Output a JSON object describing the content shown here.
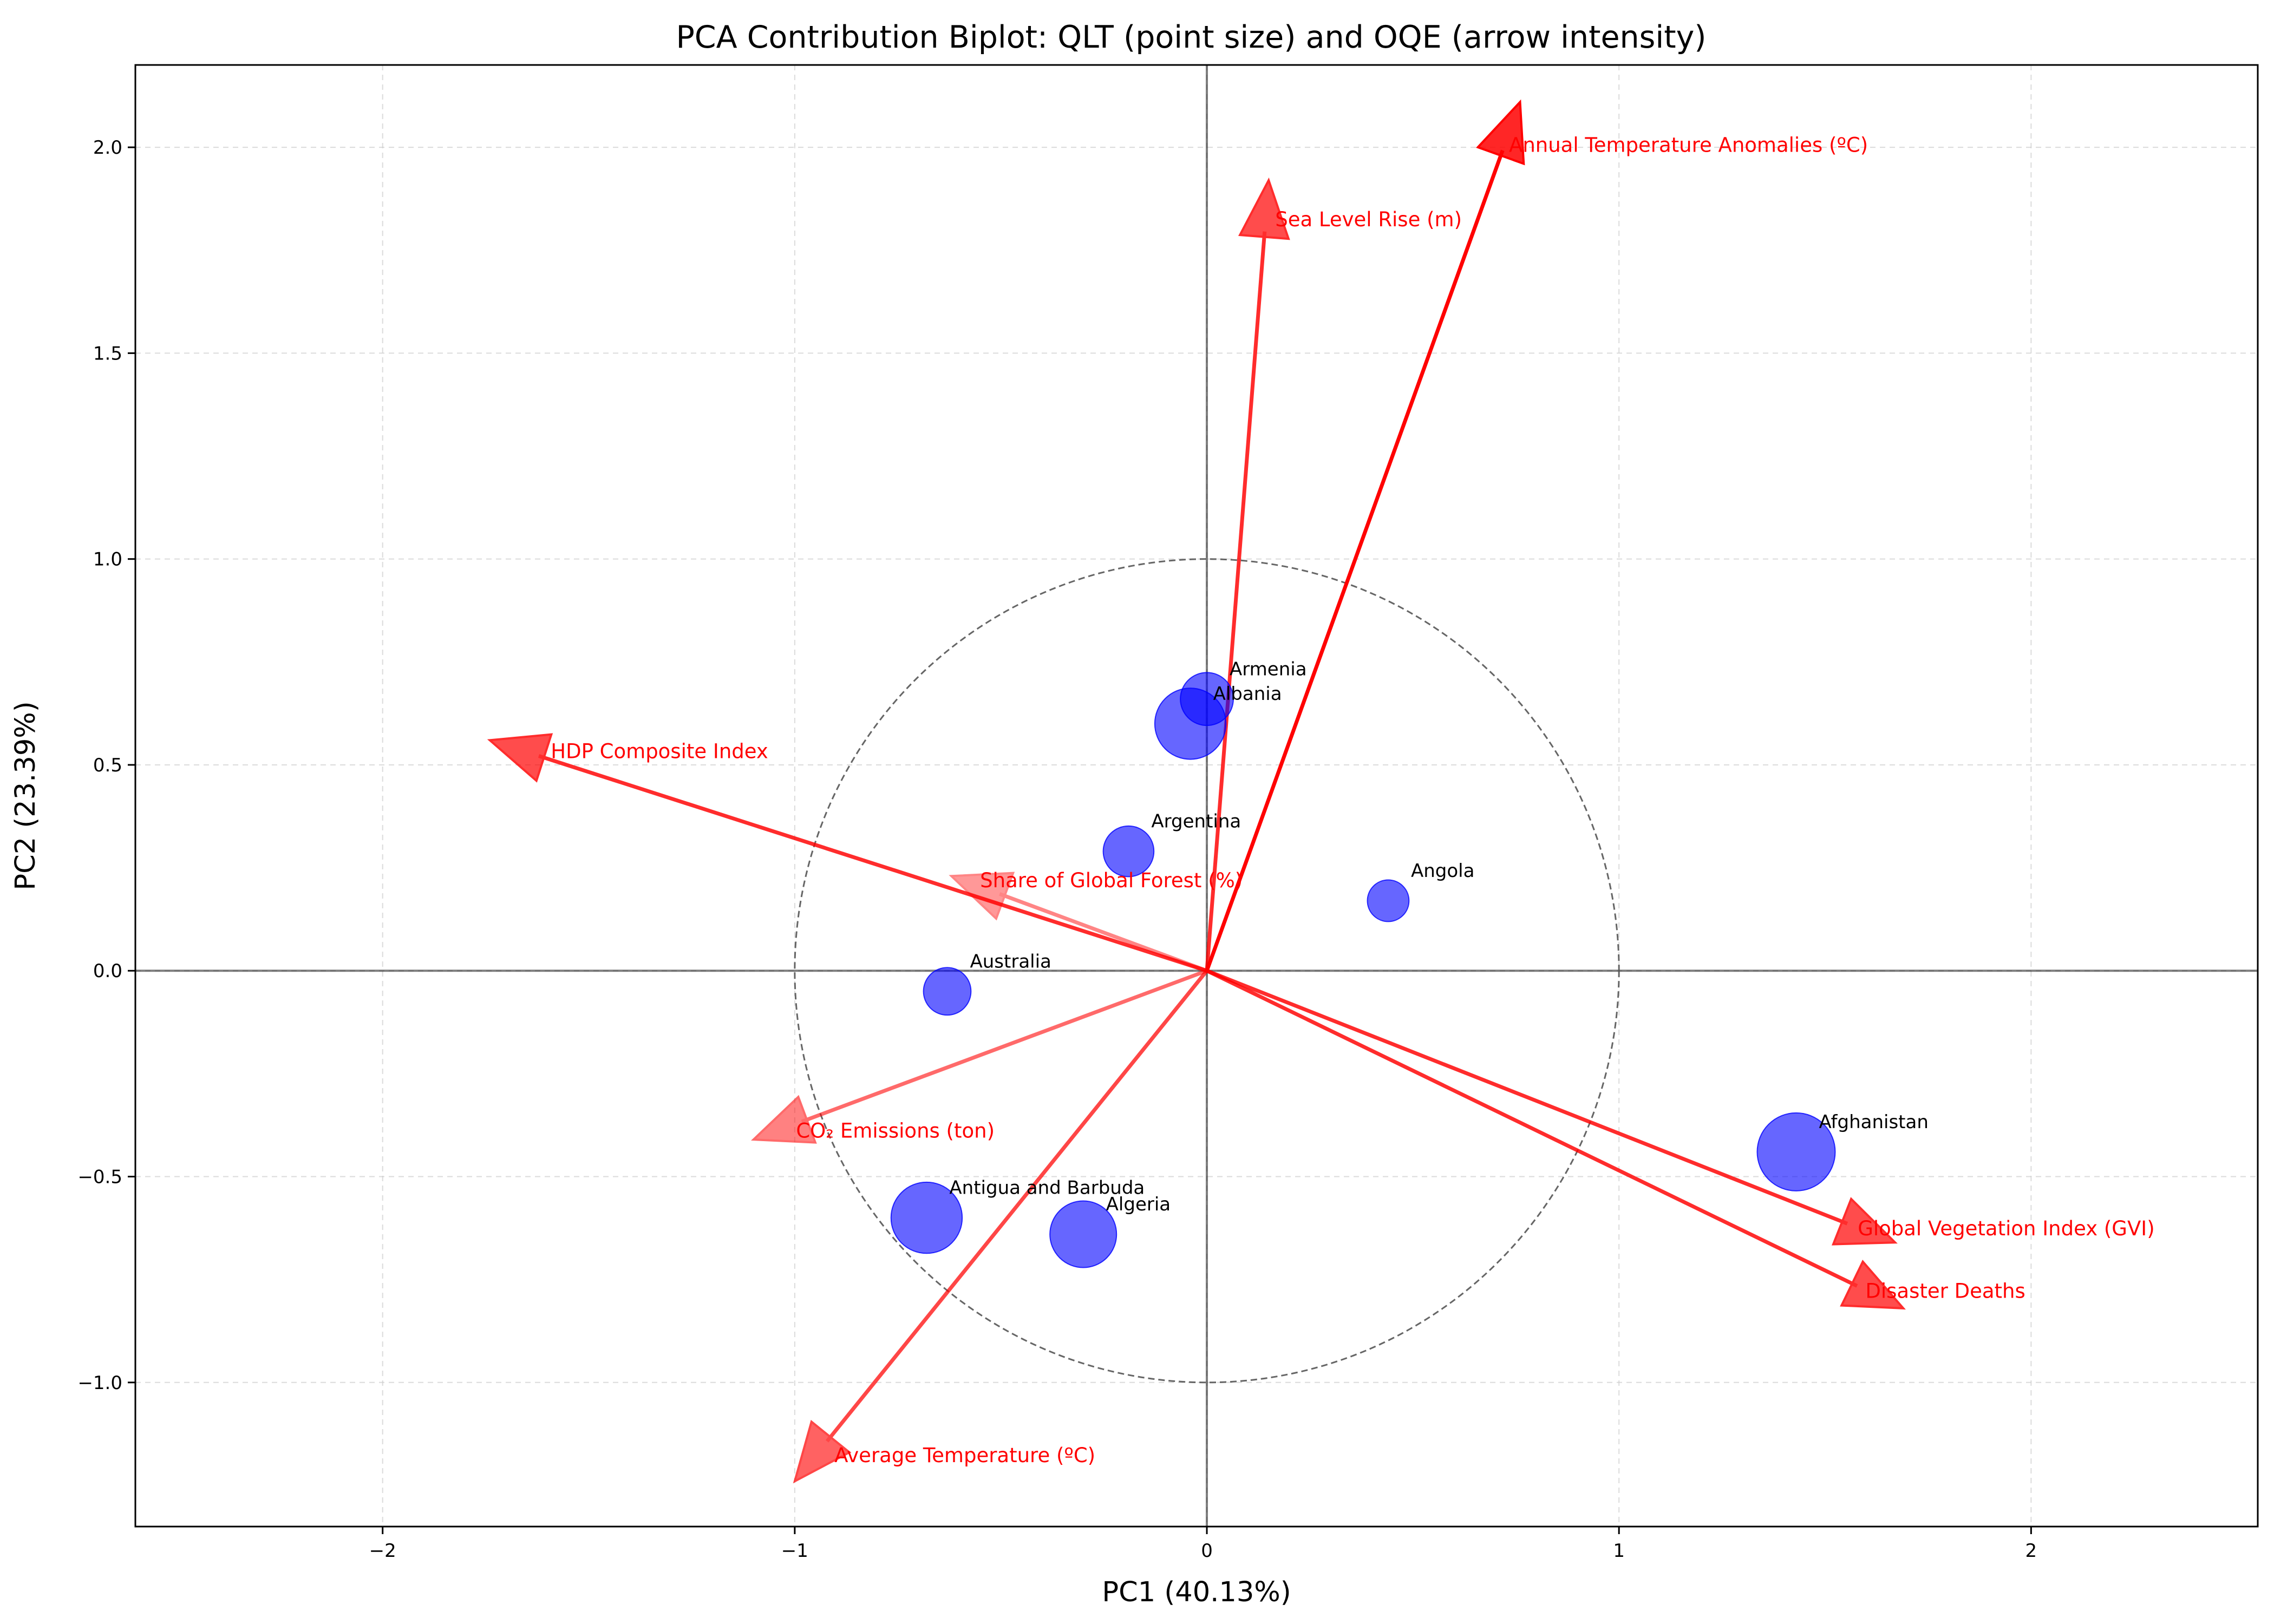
{
  "chart_data": {
    "type": "scatter",
    "title": "PCA Contribution Biplot: QLT (point size) and OQE (arrow intensity)",
    "xlabel": "PC1 (40.13%)",
    "ylabel": "PC2 (23.39%)",
    "xlim": [
      -2.6,
      2.55
    ],
    "ylim": [
      -1.35,
      2.2
    ],
    "xticks": [
      -2,
      -1,
      0,
      1,
      2
    ],
    "yticks": [
      -1.0,
      -0.5,
      0.0,
      0.5,
      1.0,
      1.5,
      2.0
    ],
    "xtick_labels": [
      "−2",
      "−1",
      "0",
      "1",
      "2"
    ],
    "ytick_labels": [
      "−1.0",
      "−0.5",
      "0.0",
      "0.5",
      "1.0",
      "1.5",
      "2.0"
    ],
    "grid": true,
    "unit_circle": {
      "center": [
        0,
        0
      ],
      "radius": 1.0
    },
    "point_color": "#0000ff",
    "arrow_color": "#ff0000",
    "points": [
      {
        "label": "Afghanistan",
        "x": 1.43,
        "y": -0.44,
        "qlt": 1.0
      },
      {
        "label": "Albania",
        "x": -0.04,
        "y": 0.6,
        "qlt": 0.85
      },
      {
        "label": "Algeria",
        "x": -0.3,
        "y": -0.64,
        "qlt": 0.75
      },
      {
        "label": "Angola",
        "x": 0.44,
        "y": 0.17,
        "qlt": 0.2
      },
      {
        "label": "Antigua and Barbuda",
        "x": -0.68,
        "y": -0.6,
        "qlt": 0.85
      },
      {
        "label": "Argentina",
        "x": -0.19,
        "y": 0.29,
        "qlt": 0.4
      },
      {
        "label": "Armenia",
        "x": 0.0,
        "y": 0.66,
        "qlt": 0.45
      },
      {
        "label": "Australia",
        "x": -0.63,
        "y": -0.05,
        "qlt": 0.33
      }
    ],
    "arrows": [
      {
        "label": "Annual Temperature Anomalies (ºC)",
        "x": 0.76,
        "y": 2.11,
        "oqe": 1.0
      },
      {
        "label": "Sea Level Rise (m)",
        "x": 0.15,
        "y": 1.92,
        "oqe": 0.75
      },
      {
        "label": "HDP Composite Index",
        "x": -1.74,
        "y": 0.56,
        "oqe": 0.75
      },
      {
        "label": "Share of Global Forest (%)",
        "x": -0.62,
        "y": 0.23,
        "oqe": 0.25
      },
      {
        "label": "CO₂ Emissions (ton)",
        "x": -1.1,
        "y": -0.41,
        "oqe": 0.4
      },
      {
        "label": "Average Temperature (ºC)",
        "x": -1.0,
        "y": -1.24,
        "oqe": 0.6
      },
      {
        "label": "Global Vegetation Index (GVI)",
        "x": 1.67,
        "y": -0.66,
        "oqe": 0.75
      },
      {
        "label": "Disaster Deaths",
        "x": 1.69,
        "y": -0.82,
        "oqe": 0.75
      }
    ]
  }
}
